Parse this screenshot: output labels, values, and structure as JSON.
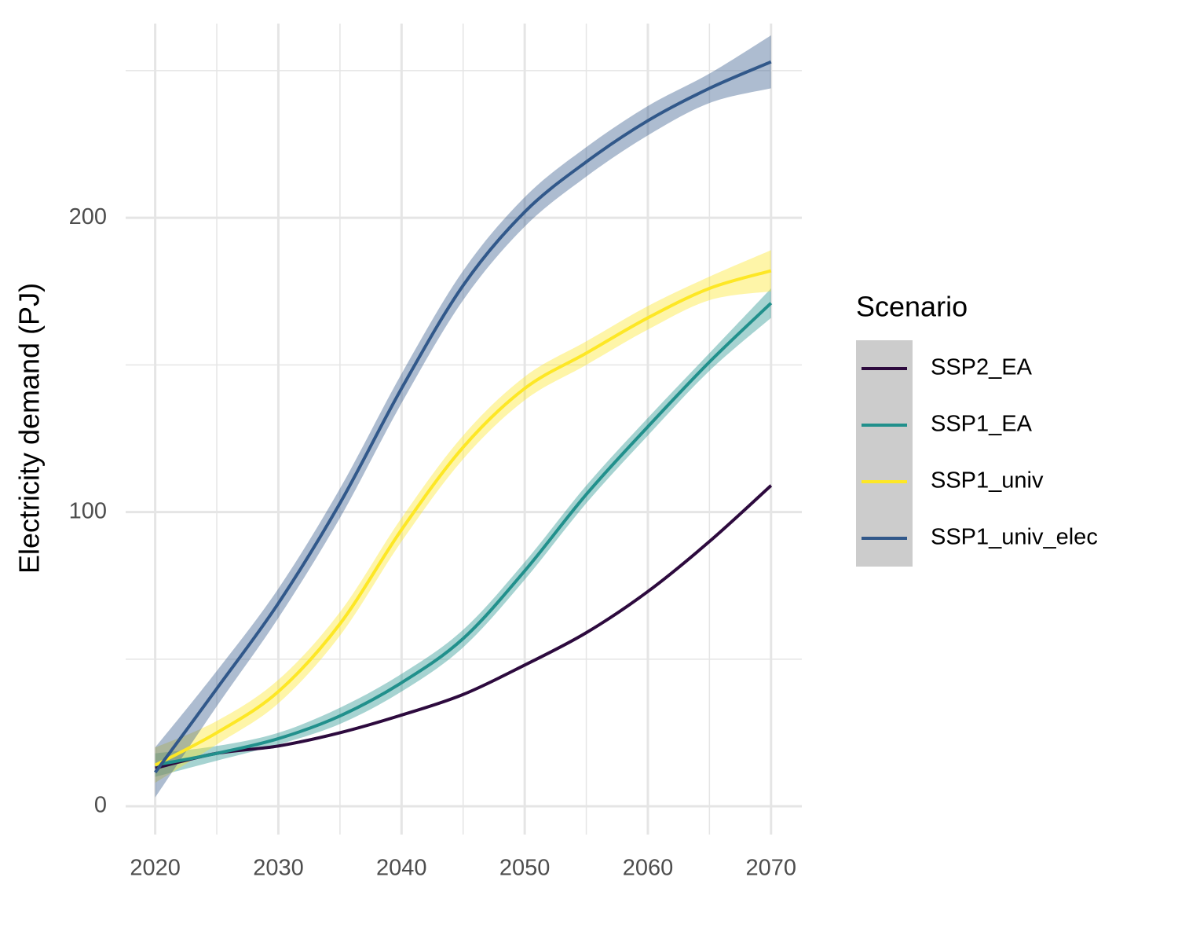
{
  "chart_data": {
    "type": "line",
    "y_label": "Electricity demand (PJ)",
    "legend_title": "Scenario",
    "x": [
      2020,
      2025,
      2030,
      2035,
      2040,
      2045,
      2050,
      2055,
      2060,
      2065,
      2070
    ],
    "series": [
      {
        "name": "SSP2_EA",
        "color": "#2d0a3e",
        "values": [
          13,
          18,
          20.5,
          25,
          31,
          38,
          48,
          59,
          73,
          90,
          109
        ],
        "lower": [
          12.5,
          17.5,
          20,
          24.5,
          30.5,
          37.5,
          47.5,
          58.5,
          72.5,
          89.5,
          108.5
        ],
        "upper": [
          13.5,
          18.5,
          21,
          25.5,
          31.5,
          38.5,
          48.5,
          59.5,
          73.5,
          90.5,
          109.5
        ]
      },
      {
        "name": "SSP1_EA",
        "color": "#21908c",
        "values": [
          14,
          18,
          23,
          30.7,
          42,
          57,
          80,
          106,
          129,
          151,
          171
        ],
        "lower": [
          10,
          15.5,
          21,
          28,
          39,
          54,
          77,
          103,
          126,
          148,
          166
        ],
        "upper": [
          18,
          20.5,
          25,
          33.5,
          45,
          60,
          83,
          109,
          132,
          154,
          176
        ]
      },
      {
        "name": "SSP1_univ",
        "color": "#fde725",
        "values": [
          14,
          25,
          39,
          62,
          94,
          122,
          142,
          154,
          166,
          176,
          182
        ],
        "lower": [
          8,
          21,
          35,
          58,
          90,
          118,
          138,
          150,
          162,
          172,
          175
        ],
        "upper": [
          20,
          29,
          43,
          66,
          98,
          126,
          146,
          158,
          170,
          180,
          189
        ]
      },
      {
        "name": "SSP1_univ_elec",
        "color": "#31588a",
        "values": [
          11.5,
          40,
          69,
          103,
          142,
          177,
          202,
          219,
          233,
          244,
          253
        ],
        "lower": [
          3,
          34,
          64,
          98,
          137,
          172,
          197,
          214,
          228,
          239,
          244
        ],
        "upper": [
          20,
          46,
          74,
          108,
          147,
          182,
          207,
          224,
          238,
          249,
          262
        ]
      }
    ],
    "xlim": [
      2017.6,
      2072.5
    ],
    "ylim": [
      -9.6,
      266
    ],
    "xticks": [
      2020,
      2030,
      2040,
      2050,
      2060,
      2070
    ],
    "xticks_minor": [
      2025,
      2035,
      2045,
      2055,
      2065
    ],
    "yticks": [
      0,
      100,
      200
    ],
    "yticks_minor": [
      50,
      150,
      250
    ],
    "grid": true
  }
}
